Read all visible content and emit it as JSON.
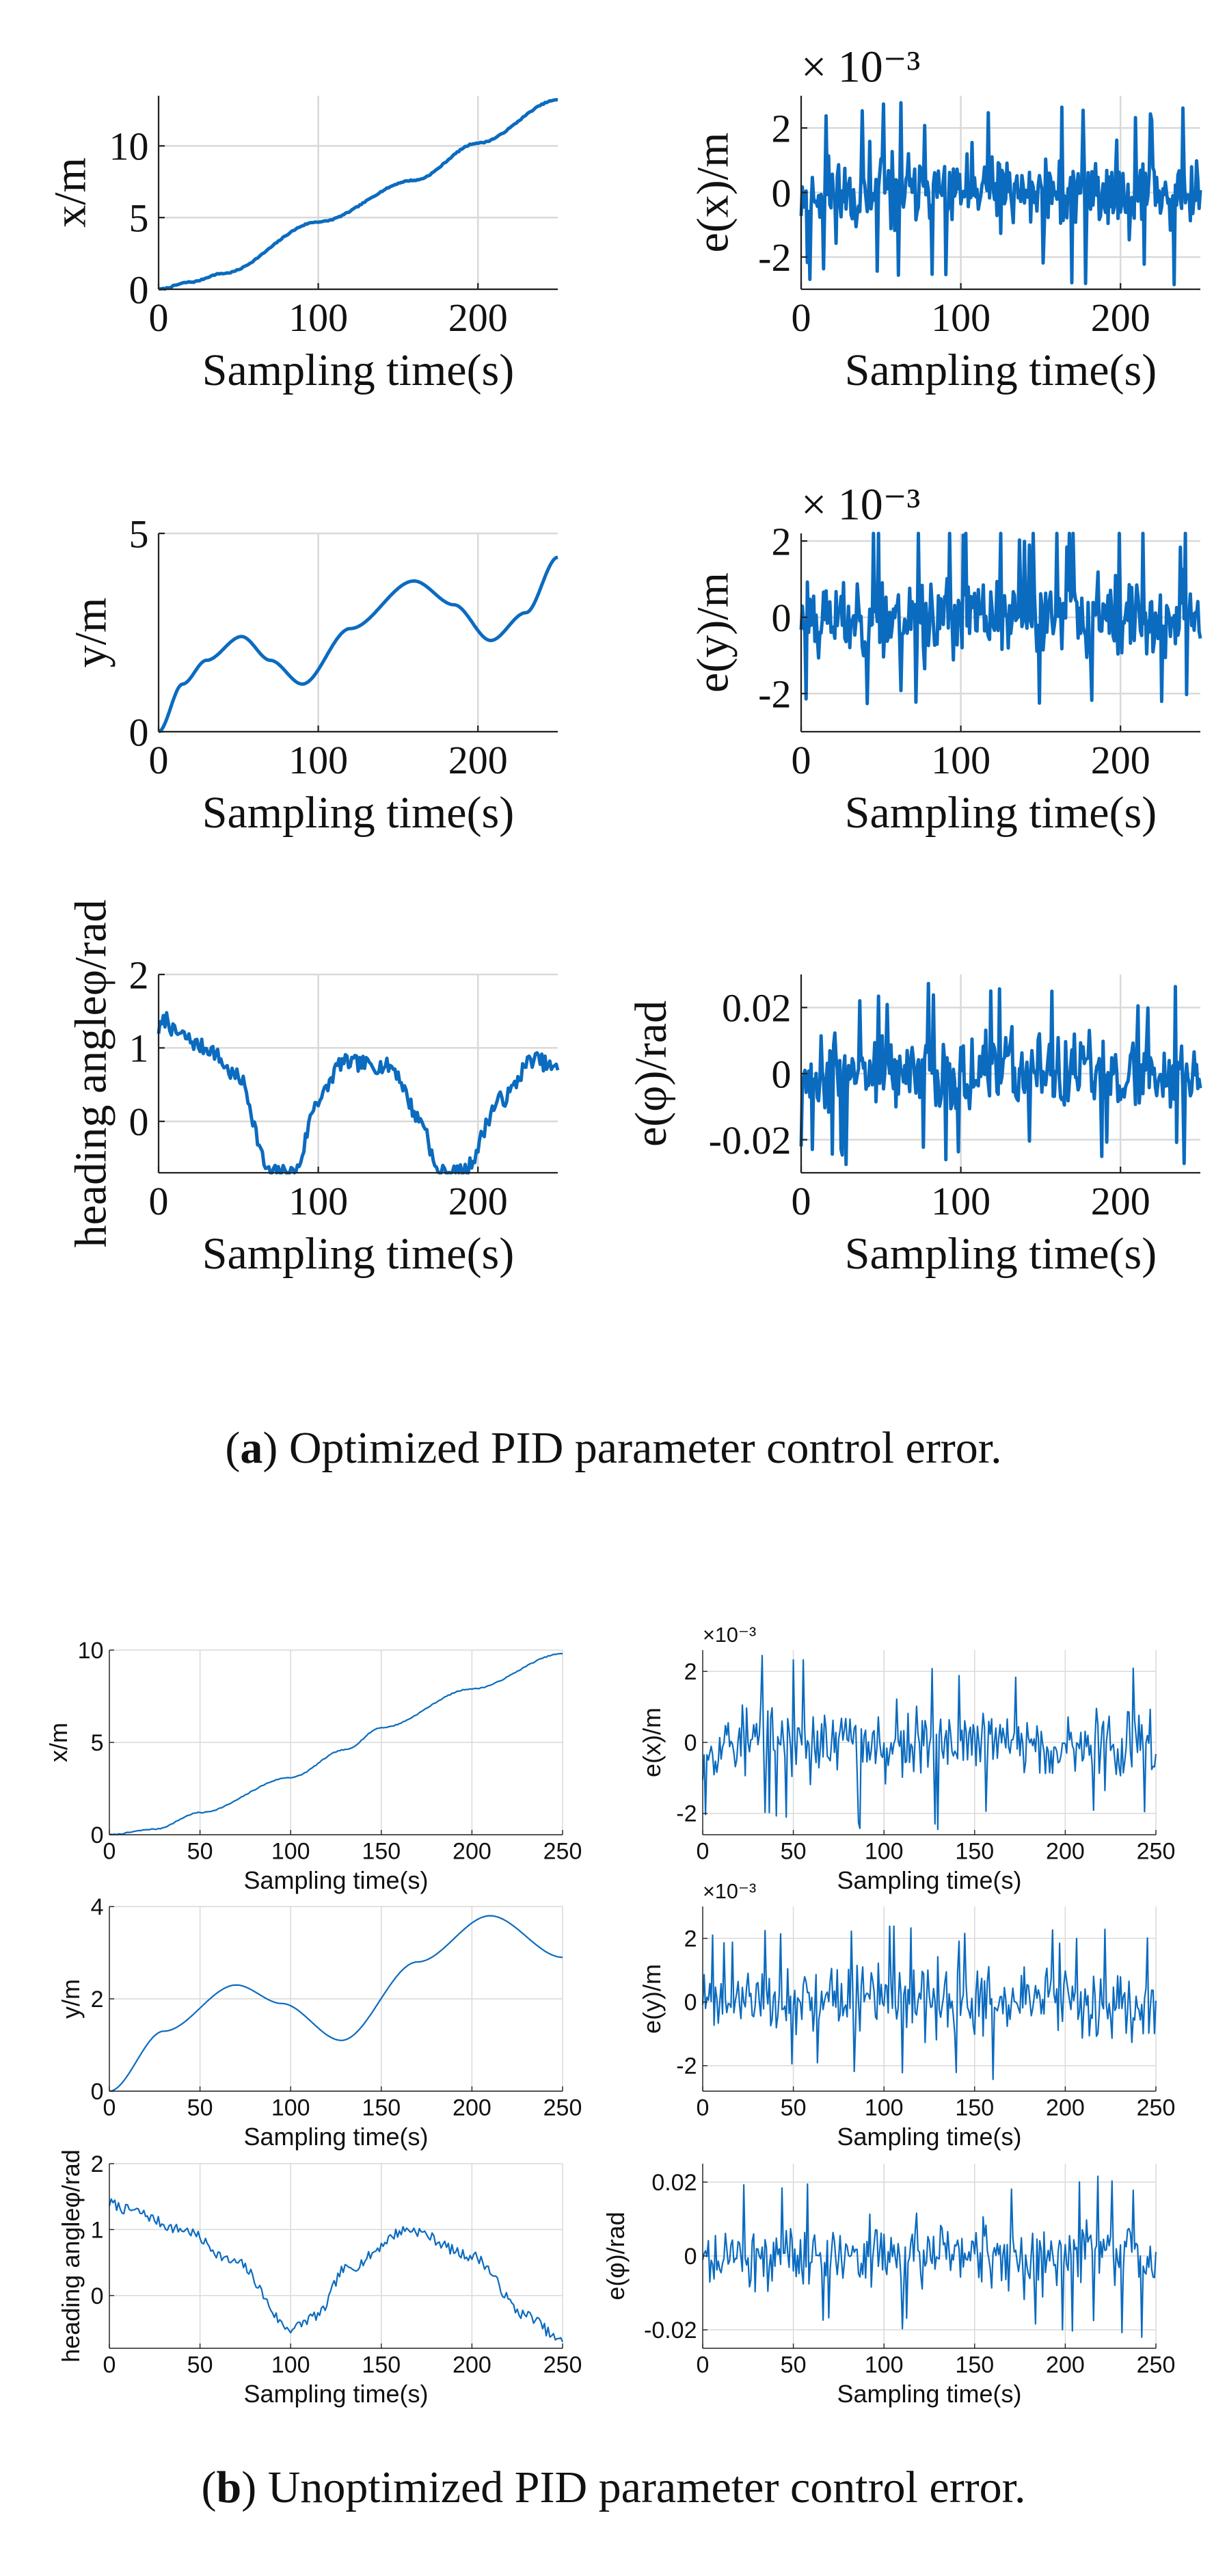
{
  "figure": {
    "caption_a_letter": "a",
    "caption_a_text": ") Optimized PID parameter control error.",
    "caption_b_letter": "b",
    "caption_b_text": ") Unoptimized PID parameter control error.",
    "paren_open": "("
  },
  "colors": {
    "line": "#0b6bbf",
    "grid": "#d9d9d9",
    "axis": "#222222"
  },
  "chart_data": [
    {
      "id": "a-x",
      "group": "a",
      "type": "line",
      "title": "",
      "xlabel": "Sampling time(s)",
      "ylabel": "x/m",
      "xlim": [
        0,
        250
      ],
      "ylim": [
        0,
        13.5
      ],
      "xticks": [
        0,
        100,
        200
      ],
      "yticks": [
        0,
        5,
        10
      ],
      "xticklabels": [
        "0",
        "100",
        "200"
      ],
      "yticklabels": [
        "0",
        "5",
        "10"
      ],
      "exponent": "",
      "series": [
        {
          "name": "x",
          "gen": "xa"
        }
      ]
    },
    {
      "id": "a-ex",
      "group": "a",
      "type": "line",
      "title": "",
      "xlabel": "Sampling time(s)",
      "ylabel": "e(x)/m",
      "xlim": [
        0,
        250
      ],
      "ylim": [
        -3,
        3
      ],
      "xticks": [
        0,
        100,
        200
      ],
      "yticks": [
        -2,
        0,
        2
      ],
      "xticklabels": [
        "0",
        "100",
        "200"
      ],
      "yticklabels": [
        "-2",
        "0",
        "2"
      ],
      "exponent": "× 10⁻³",
      "series": [
        {
          "name": "e(x)",
          "gen": "noise",
          "amp": 2.3,
          "seed": 11
        }
      ]
    },
    {
      "id": "a-y",
      "group": "a",
      "type": "line",
      "title": "",
      "xlabel": "Sampling time(s)",
      "ylabel": "y/m",
      "xlim": [
        0,
        250
      ],
      "ylim": [
        0,
        5
      ],
      "xticks": [
        0,
        100,
        200
      ],
      "yticks": [
        0,
        5
      ],
      "xticklabels": [
        "0",
        "100",
        "200"
      ],
      "yticklabels": [
        "0",
        "5"
      ],
      "exponent": "",
      "series": [
        {
          "name": "y",
          "gen": "ya"
        }
      ]
    },
    {
      "id": "a-ey",
      "group": "a",
      "type": "line",
      "title": "",
      "xlabel": "Sampling time(s)",
      "ylabel": "e(y)/m",
      "xlim": [
        0,
        250
      ],
      "ylim": [
        -3,
        2.2
      ],
      "xticks": [
        0,
        100,
        200
      ],
      "yticks": [
        -2,
        0,
        2
      ],
      "xticklabels": [
        "0",
        "100",
        "200"
      ],
      "yticklabels": [
        "-2",
        "0",
        "2"
      ],
      "exponent": "× 10⁻³",
      "series": [
        {
          "name": "e(y)",
          "gen": "noise",
          "amp": 2.0,
          "seed": 23
        }
      ]
    },
    {
      "id": "a-h",
      "group": "a",
      "type": "line",
      "title": "",
      "xlabel": "Sampling time(s)",
      "ylabel": "heading angleφ/rad",
      "xlim": [
        0,
        250
      ],
      "ylim": [
        -0.7,
        2
      ],
      "xticks": [
        0,
        100,
        200
      ],
      "yticks": [
        0,
        1,
        2
      ],
      "xticklabels": [
        "0",
        "100",
        "200"
      ],
      "yticklabels": [
        "0",
        "1",
        "2"
      ],
      "exponent": "",
      "series": [
        {
          "name": "heading",
          "gen": "ha"
        }
      ]
    },
    {
      "id": "a-eh",
      "group": "a",
      "type": "line",
      "title": "",
      "xlabel": "Sampling time(s)",
      "ylabel": "e(φ)/rad",
      "xlim": [
        0,
        250
      ],
      "ylim": [
        -0.03,
        0.03
      ],
      "xticks": [
        0,
        100,
        200
      ],
      "yticks": [
        -0.02,
        0,
        0.02
      ],
      "xticklabels": [
        "0",
        "100",
        "200"
      ],
      "yticklabels": [
        "-0.02",
        "0",
        "0.02"
      ],
      "exponent": "",
      "series": [
        {
          "name": "e(phi)",
          "gen": "noise",
          "amp": 0.022,
          "seed": 37
        }
      ]
    },
    {
      "id": "b-x",
      "group": "b",
      "type": "line",
      "title": "",
      "xlabel": "Sampling time(s)",
      "ylabel": "x/m",
      "xlim": [
        0,
        250
      ],
      "ylim": [
        0,
        10
      ],
      "xticks": [
        0,
        50,
        100,
        150,
        200,
        250
      ],
      "yticks": [
        0,
        5,
        10
      ],
      "xticklabels": [
        "0",
        "50",
        "100",
        "150",
        "200",
        "250"
      ],
      "yticklabels": [
        "0",
        "5",
        "10"
      ],
      "exponent": "",
      "series": [
        {
          "name": "x",
          "gen": "xb"
        }
      ]
    },
    {
      "id": "b-ex",
      "group": "b",
      "type": "line",
      "title": "",
      "xlabel": "Sampling time(s)",
      "ylabel": "e(x)/m",
      "xlim": [
        0,
        250
      ],
      "ylim": [
        -2.6,
        2.6
      ],
      "xticks": [
        0,
        50,
        100,
        150,
        200,
        250
      ],
      "yticks": [
        -2,
        0,
        2
      ],
      "xticklabels": [
        "0",
        "50",
        "100",
        "150",
        "200",
        "250"
      ],
      "yticklabels": [
        "-2",
        "0",
        "2"
      ],
      "exponent": "×10⁻³",
      "series": [
        {
          "name": "e(x)",
          "gen": "noise",
          "amp": 2.0,
          "seed": 53
        }
      ]
    },
    {
      "id": "b-y",
      "group": "b",
      "type": "line",
      "title": "",
      "xlabel": "Sampling time(s)",
      "ylabel": "y/m",
      "xlim": [
        0,
        250
      ],
      "ylim": [
        0,
        4
      ],
      "xticks": [
        0,
        50,
        100,
        150,
        200,
        250
      ],
      "yticks": [
        0,
        2,
        4
      ],
      "xticklabels": [
        "0",
        "50",
        "100",
        "150",
        "200",
        "250"
      ],
      "yticklabels": [
        "0",
        "2",
        "4"
      ],
      "exponent": "",
      "series": [
        {
          "name": "y",
          "gen": "yb"
        }
      ]
    },
    {
      "id": "b-ey",
      "group": "b",
      "type": "line",
      "title": "",
      "xlabel": "Sampling time(s)",
      "ylabel": "e(y)/m",
      "xlim": [
        0,
        250
      ],
      "ylim": [
        -2.8,
        3
      ],
      "xticks": [
        0,
        50,
        100,
        150,
        200,
        250
      ],
      "yticks": [
        -2,
        0,
        2
      ],
      "xticklabels": [
        "0",
        "50",
        "100",
        "150",
        "200",
        "250"
      ],
      "yticklabels": [
        "-2",
        "0",
        "2"
      ],
      "exponent": "×10⁻³",
      "series": [
        {
          "name": "e(y)",
          "gen": "noise",
          "amp": 2.0,
          "seed": 71
        }
      ]
    },
    {
      "id": "b-h",
      "group": "b",
      "type": "line",
      "title": "",
      "xlabel": "Sampling time(s)",
      "ylabel": "heading angleφ/rad",
      "xlim": [
        0,
        250
      ],
      "ylim": [
        -0.8,
        2
      ],
      "xticks": [
        0,
        50,
        100,
        150,
        200,
        250
      ],
      "yticks": [
        0,
        1,
        2
      ],
      "xticklabels": [
        "0",
        "50",
        "100",
        "150",
        "200",
        "250"
      ],
      "yticklabels": [
        "0",
        "1",
        "2"
      ],
      "exponent": "",
      "series": [
        {
          "name": "heading",
          "gen": "hb"
        }
      ]
    },
    {
      "id": "b-eh",
      "group": "b",
      "type": "line",
      "title": "",
      "xlabel": "Sampling time(s)",
      "ylabel": "e(φ)/rad",
      "xlim": [
        0,
        250
      ],
      "ylim": [
        -0.025,
        0.025
      ],
      "xticks": [
        0,
        50,
        100,
        150,
        200,
        250
      ],
      "yticks": [
        -0.02,
        0,
        0.02
      ],
      "xticklabels": [
        "0",
        "50",
        "100",
        "150",
        "200",
        "250"
      ],
      "yticklabels": [
        "-0.02",
        "0",
        "0.02"
      ],
      "exponent": "",
      "series": [
        {
          "name": "e(phi)",
          "gen": "noise",
          "amp": 0.018,
          "seed": 89
        }
      ]
    }
  ]
}
